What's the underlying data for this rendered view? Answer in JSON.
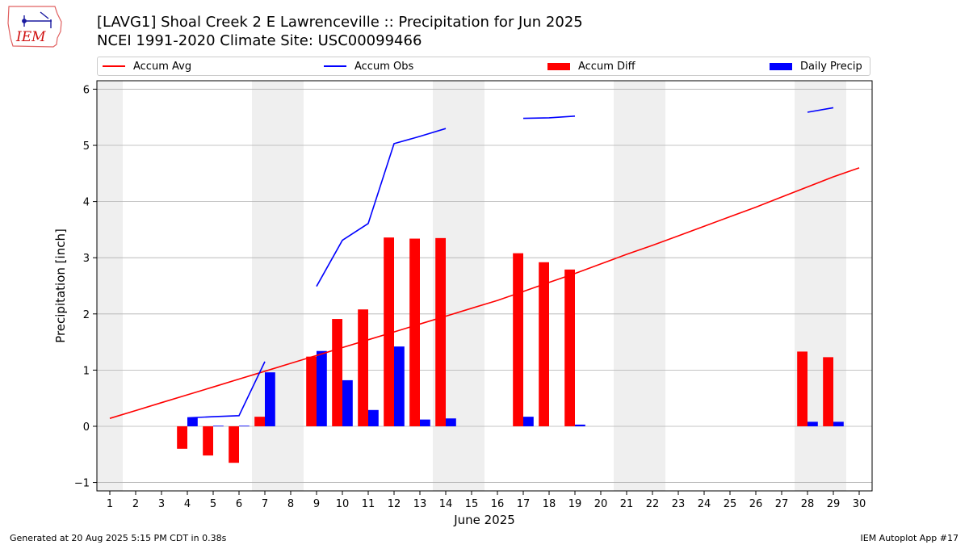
{
  "logo": {
    "text": "IEM",
    "icon": "iowa-state-outline-icon"
  },
  "title_line1": "[LAVG1] Shoal Creek 2 E Lawrenceville :: Precipitation for Jun 2025",
  "title_line2": "NCEI 1991-2020 Climate Site: USC00099466",
  "legend": [
    {
      "label": "Accum Avg",
      "kind": "line",
      "color": "#ff0000"
    },
    {
      "label": "Accum Obs",
      "kind": "line",
      "color": "#0000ff"
    },
    {
      "label": "Accum Diff",
      "kind": "bar",
      "color": "#ff0000"
    },
    {
      "label": "Daily Precip",
      "kind": "bar",
      "color": "#0000ff"
    }
  ],
  "footer_left": "Generated at 20 Aug 2025 5:15 PM CDT in 0.38s",
  "footer_right": "IEM Autoplot App #17",
  "chart_data": {
    "type": "bar",
    "title": "[LAVG1] Shoal Creek 2 E Lawrenceville :: Precipitation for Jun 2025",
    "subtitle": "NCEI 1991-2020 Climate Site: USC00099466",
    "xlabel": "June 2025",
    "ylabel": "Precipitation [inch]",
    "x": [
      1,
      2,
      3,
      4,
      5,
      6,
      7,
      8,
      9,
      10,
      11,
      12,
      13,
      14,
      15,
      16,
      17,
      18,
      19,
      20,
      21,
      22,
      23,
      24,
      25,
      26,
      27,
      28,
      29,
      30
    ],
    "xlim": [
      0.5,
      30.5
    ],
    "ylim": [
      -1.15,
      6.15
    ],
    "yticks": [
      -1,
      0,
      1,
      2,
      3,
      4,
      5,
      6
    ],
    "grid": "y",
    "legend_position": "top",
    "weekend_shading": [
      [
        0.5,
        1.5
      ],
      [
        6.5,
        8.5
      ],
      [
        13.5,
        15.5
      ],
      [
        20.5,
        22.5
      ],
      [
        27.5,
        29.5
      ]
    ],
    "series": [
      {
        "name": "Accum Avg",
        "type": "line",
        "color": "#ff0000",
        "values": [
          0.14,
          0.28,
          0.42,
          0.56,
          0.7,
          0.84,
          0.98,
          1.12,
          1.26,
          1.4,
          1.54,
          1.68,
          1.82,
          1.96,
          2.1,
          2.24,
          2.4,
          2.56,
          2.72,
          2.89,
          3.06,
          3.22,
          3.39,
          3.56,
          3.73,
          3.9,
          4.08,
          4.26,
          4.44,
          4.6
        ]
      },
      {
        "name": "Accum Obs",
        "type": "line",
        "color": "#0000ff",
        "values": [
          null,
          null,
          null,
          0.15,
          0.17,
          0.19,
          1.15,
          null,
          2.49,
          3.31,
          3.61,
          5.03,
          5.16,
          5.3,
          null,
          null,
          5.48,
          5.49,
          5.52,
          null,
          null,
          null,
          null,
          null,
          null,
          null,
          null,
          5.59,
          5.67,
          null
        ]
      },
      {
        "name": "Accum Diff",
        "type": "bar",
        "color": "#ff0000",
        "values": [
          null,
          null,
          null,
          -0.4,
          -0.52,
          -0.65,
          0.17,
          null,
          1.24,
          1.91,
          2.08,
          3.36,
          3.34,
          3.35,
          null,
          null,
          3.08,
          2.92,
          2.79,
          null,
          null,
          null,
          null,
          null,
          null,
          null,
          null,
          1.33,
          1.23,
          null
        ]
      },
      {
        "name": "Daily Precip",
        "type": "bar",
        "color": "#0000ff",
        "values": [
          null,
          null,
          null,
          0.15,
          0.01,
          0.01,
          0.96,
          null,
          1.34,
          0.82,
          0.29,
          1.42,
          0.12,
          0.14,
          null,
          null,
          0.17,
          null,
          0.03,
          null,
          null,
          null,
          null,
          null,
          null,
          null,
          null,
          0.08,
          0.08,
          null
        ]
      }
    ]
  }
}
